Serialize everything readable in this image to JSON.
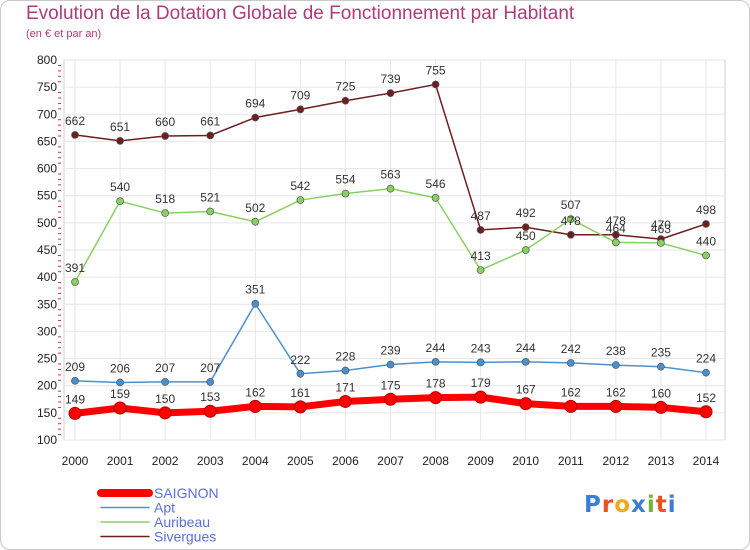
{
  "header": {
    "title": "Evolution de la Dotation Globale de Fonctionnement par Habitant",
    "subtitle": "(en € et par an)"
  },
  "logo": {
    "text": "Proxiti",
    "colors": [
      "#3a7fd5",
      "#e8531f",
      "#f2a81d",
      "#3a7fd5",
      "#6fb63b",
      "#e8531f",
      "#3a7fd5"
    ]
  },
  "chart_data": {
    "type": "line",
    "x": [
      "2000",
      "2001",
      "2002",
      "2003",
      "2004",
      "2005",
      "2006",
      "2007",
      "2008",
      "2009",
      "2010",
      "2011",
      "2012",
      "2013",
      "2014"
    ],
    "ylim": [
      100,
      800
    ],
    "yticks": [
      100,
      150,
      200,
      250,
      300,
      350,
      400,
      450,
      500,
      550,
      600,
      650,
      700,
      750,
      800
    ],
    "grid": true,
    "legend_position": "bottom-left",
    "series": [
      {
        "name": "SAIGNON",
        "color": "#ff0000",
        "values": [
          149,
          159,
          150,
          153,
          162,
          161,
          171,
          175,
          178,
          179,
          167,
          162,
          162,
          160,
          152
        ]
      },
      {
        "name": "Apt",
        "color": "#4a90d0",
        "values": [
          209,
          206,
          207,
          207,
          351,
          222,
          228,
          239,
          244,
          243,
          244,
          242,
          238,
          235,
          224
        ]
      },
      {
        "name": "Auribeau",
        "color": "#88d060",
        "values": [
          391,
          540,
          518,
          521,
          502,
          542,
          554,
          563,
          546,
          413,
          450,
          507,
          464,
          463,
          440
        ]
      },
      {
        "name": "Sivergues",
        "color": "#6e1e1e",
        "values": [
          662,
          651,
          660,
          661,
          694,
          709,
          725,
          739,
          755,
          487,
          492,
          478,
          478,
          470,
          498
        ]
      }
    ]
  }
}
